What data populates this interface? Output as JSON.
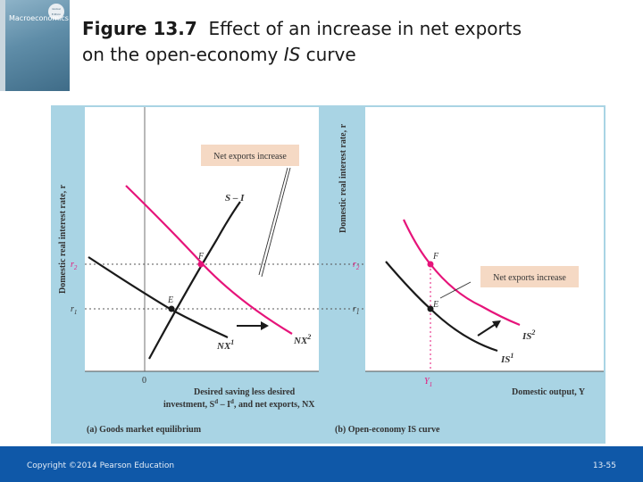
{
  "book": {
    "title": "Macroeconomics",
    "edition": "Global Edition"
  },
  "header": {
    "figure_label": "Figure 13.7",
    "title_part1": "Effect of an increase in net exports",
    "title_part2_pre": "on the open-economy ",
    "title_part2_italic": "IS",
    "title_part2_post": " curve"
  },
  "figure": {
    "left": {
      "y_axis_label": "Domestic real interest rate, r",
      "r1_label": "r",
      "r1_sub": "1",
      "r2_label": "r",
      "r2_sub": "2",
      "origin_label": "0",
      "curve_si": "S – I",
      "curve_nx1": "NX",
      "curve_nx1_sup": "1",
      "curve_nx2": "NX",
      "curve_nx2_sup": "2",
      "point_e": "E",
      "point_f": "F",
      "annotation": "Net exports increase",
      "x_axis_line1": "Desired saving less desired",
      "x_axis_line2": "investment, S",
      "x_axis_sup": "d",
      "x_axis_line2b": " – I",
      "x_axis_sup2": "d",
      "x_axis_line2c": ", and net exports, NX",
      "caption": "(a) Goods market equilibrium"
    },
    "right": {
      "y_axis_label": "Domestic real interest rate, r",
      "r1_label": "r",
      "r1_sub": "1",
      "r2_label": "r",
      "r2_sub": "2",
      "y1_label": "Y",
      "y1_sub": "1",
      "curve_is1": "IS",
      "curve_is1_sup": "1",
      "curve_is2": "IS",
      "curve_is2_sup": "2",
      "point_e": "E",
      "point_f": "F",
      "annotation": "Net exports increase",
      "x_axis_label": "Domestic output, Y",
      "caption": "(b) Open-economy IS curve"
    },
    "colors": {
      "panel_bg": "#a9d4e4",
      "plot_bg": "#ffffff",
      "magenta": "#e6147a",
      "black_curve": "#1a1a1a",
      "note_bg": "#f5d9c4"
    }
  },
  "footer": {
    "copyright": "Copyright ©2014 Pearson Education",
    "page": "13-55"
  }
}
